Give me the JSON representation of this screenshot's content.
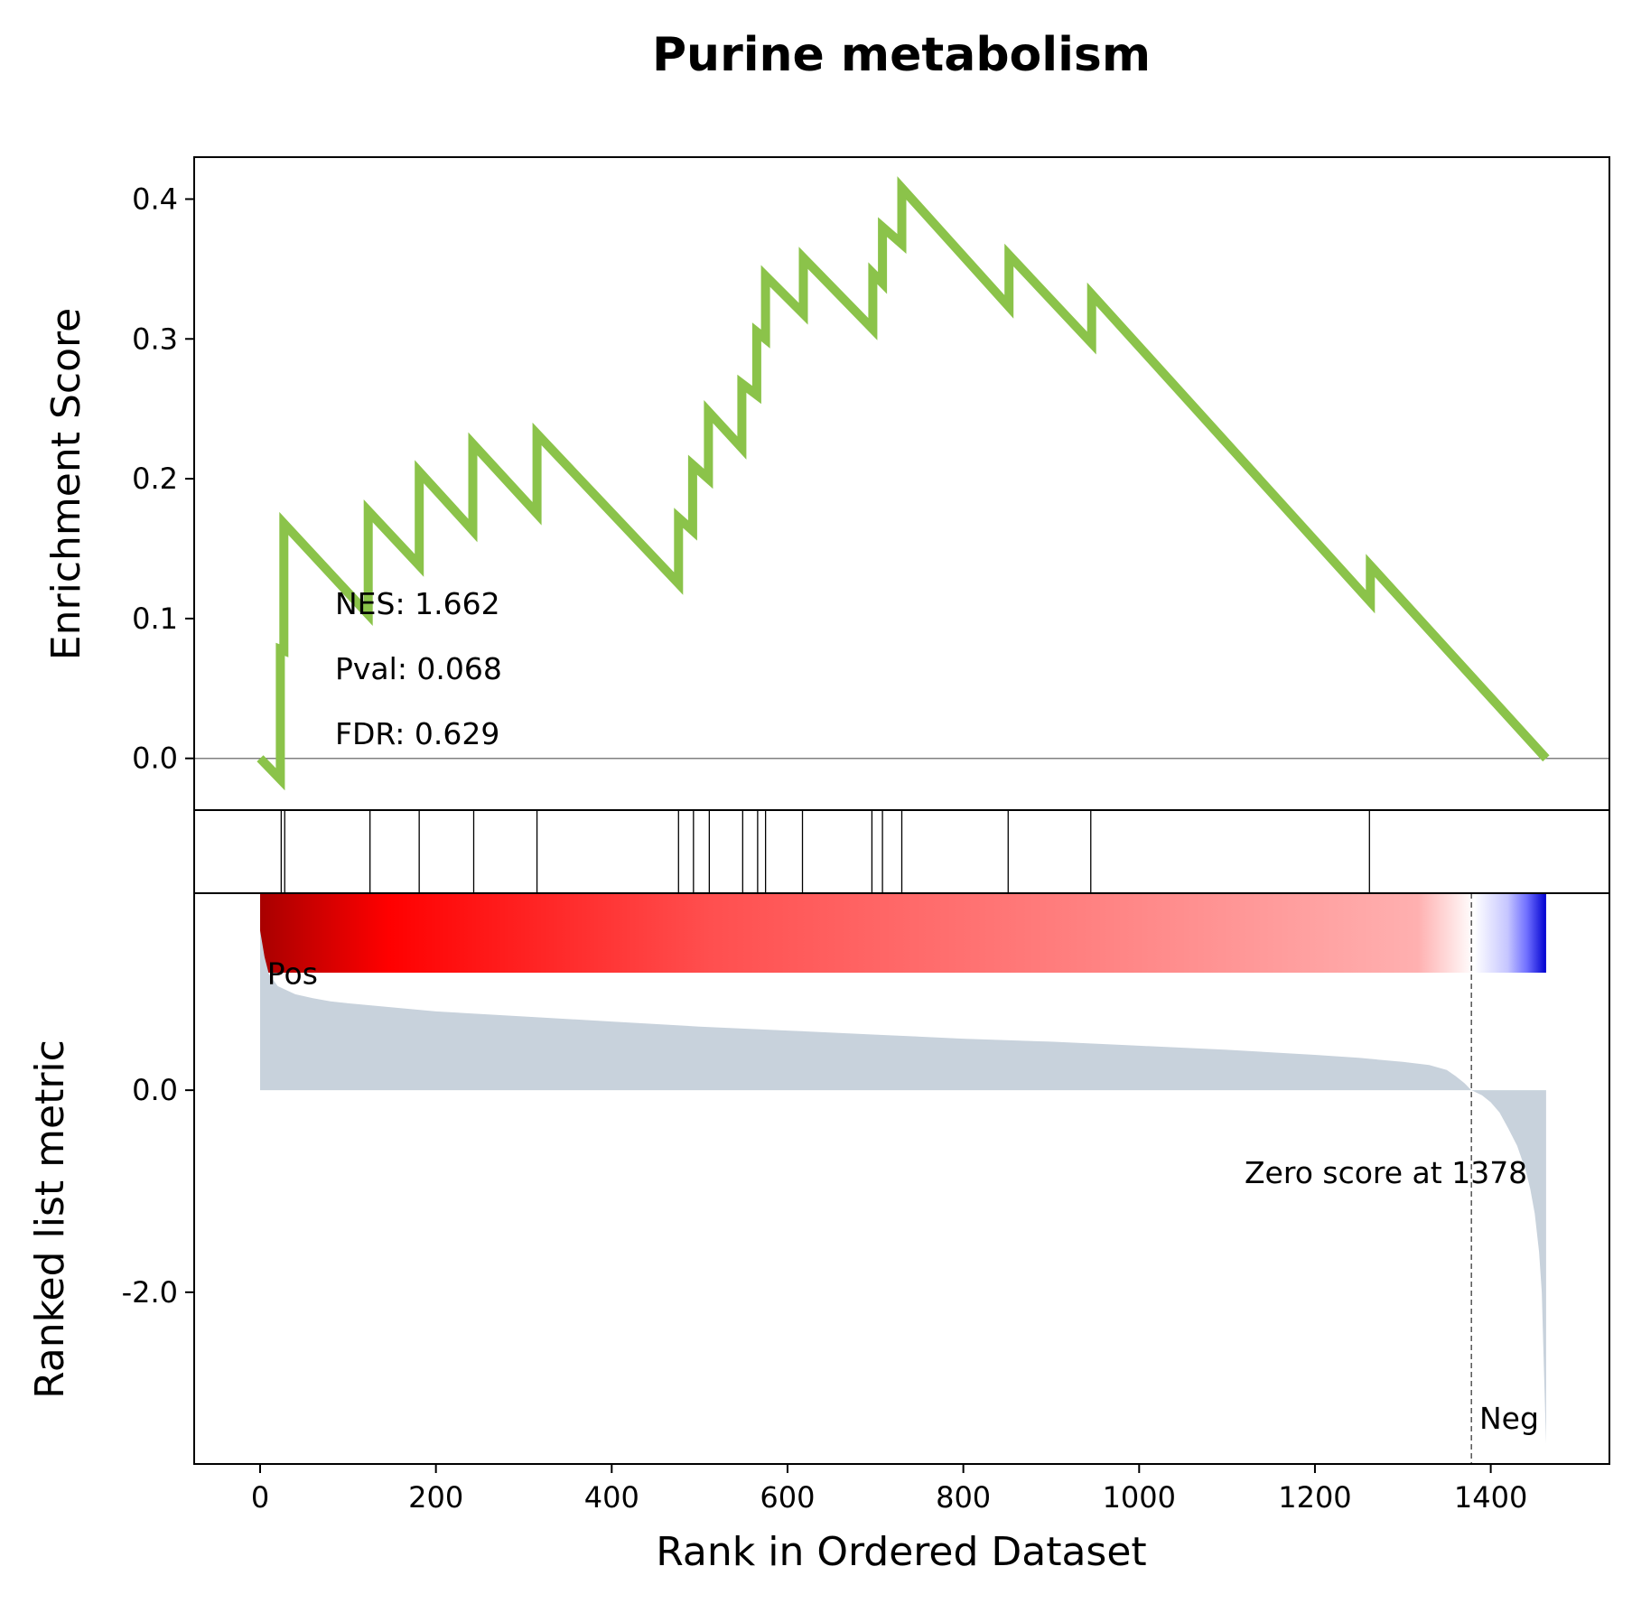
{
  "chart_data": {
    "type": "line",
    "title": "Purine metabolism",
    "xlabel": "Rank in Ordered Dataset",
    "xlim": [
      -75,
      1535
    ],
    "x_ticks": [
      "0",
      "200",
      "400",
      "600",
      "800",
      "1000",
      "1200",
      "1400"
    ],
    "x_tick_values": [
      0,
      200,
      400,
      600,
      800,
      1000,
      1200,
      1400
    ],
    "line_color": "#8bc34a",
    "enrichment": {
      "ylabel": "Enrichment Score",
      "ylim": [
        -0.037,
        0.43
      ],
      "y_ticks": [
        "0.0",
        "0.1",
        "0.2",
        "0.3",
        "0.4"
      ],
      "y_tick_values": [
        0,
        0.1,
        0.2,
        0.3,
        0.4
      ],
      "zero_line": true,
      "x": [
        0,
        23,
        23,
        27,
        27,
        123,
        123,
        181,
        181,
        242,
        242,
        315,
        315,
        476,
        476,
        492,
        492,
        510,
        510,
        548,
        548,
        565,
        565,
        575,
        575,
        618,
        618,
        697,
        697,
        708,
        708,
        730,
        730,
        852,
        852,
        946,
        946,
        1263,
        1263,
        1463
      ],
      "y": [
        0,
        -0.015,
        0.078,
        0.077,
        0.168,
        0.103,
        0.177,
        0.138,
        0.205,
        0.163,
        0.225,
        0.175,
        0.232,
        0.125,
        0.172,
        0.163,
        0.21,
        0.2,
        0.248,
        0.222,
        0.268,
        0.26,
        0.305,
        0.3,
        0.345,
        0.318,
        0.358,
        0.307,
        0.347,
        0.34,
        0.38,
        0.368,
        0.408,
        0.323,
        0.36,
        0.297,
        0.332,
        0.112,
        0.138,
        0
      ]
    },
    "stats": {
      "nes": "NES: 1.662",
      "pval": "Pval: 0.068",
      "fdr": "FDR: 0.629"
    },
    "hits": [
      24,
      28,
      125,
      181,
      243,
      315,
      476,
      493,
      511,
      549,
      566,
      575,
      617,
      696,
      708,
      730,
      851,
      945,
      1262
    ],
    "color_bar": {
      "stops": [
        {
          "pos": 0.0,
          "color": "#a80000"
        },
        {
          "pos": 0.1,
          "color": "#ff0000"
        },
        {
          "pos": 0.35,
          "color": "#ff4f4f"
        },
        {
          "pos": 0.65,
          "color": "#ff8282"
        },
        {
          "pos": 0.9,
          "color": "#ffb0b0"
        },
        {
          "pos": 0.944,
          "color": "#ffffff"
        },
        {
          "pos": 0.97,
          "color": "#c6c6ff"
        },
        {
          "pos": 0.985,
          "color": "#7070ff"
        },
        {
          "pos": 1.0,
          "color": "#0000d0"
        }
      ]
    },
    "ranked": {
      "ylabel": "Ranked list metric",
      "ylim": [
        -3.7,
        1.95
      ],
      "y_ticks": [
        "0.0",
        "-2.0"
      ],
      "y_tick_values": [
        0,
        -2
      ],
      "fill_color": "#c8d2dc",
      "x": [
        0,
        5,
        10,
        20,
        40,
        60,
        80,
        100,
        150,
        200,
        300,
        400,
        500,
        600,
        700,
        800,
        900,
        1000,
        1100,
        1200,
        1250,
        1300,
        1330,
        1350,
        1360,
        1370,
        1378,
        1390,
        1400,
        1410,
        1420,
        1430,
        1440,
        1445,
        1450,
        1455,
        1458,
        1460,
        1462,
        1463
      ],
      "y": [
        1.58,
        1.32,
        1.15,
        1.03,
        0.95,
        0.91,
        0.88,
        0.86,
        0.82,
        0.78,
        0.73,
        0.68,
        0.63,
        0.59,
        0.55,
        0.51,
        0.48,
        0.44,
        0.4,
        0.35,
        0.32,
        0.28,
        0.25,
        0.2,
        0.14,
        0.07,
        0,
        -0.05,
        -0.12,
        -0.22,
        -0.38,
        -0.55,
        -0.8,
        -0.98,
        -1.22,
        -1.6,
        -2.0,
        -2.6,
        -3.2,
        -3.5
      ],
      "zero_cross": 1378,
      "zero_label": "Zero score at 1378",
      "pos_label": "Pos",
      "neg_label": "Neg",
      "pos_color": "#ff0000",
      "neg_color": "#0000ff"
    }
  }
}
